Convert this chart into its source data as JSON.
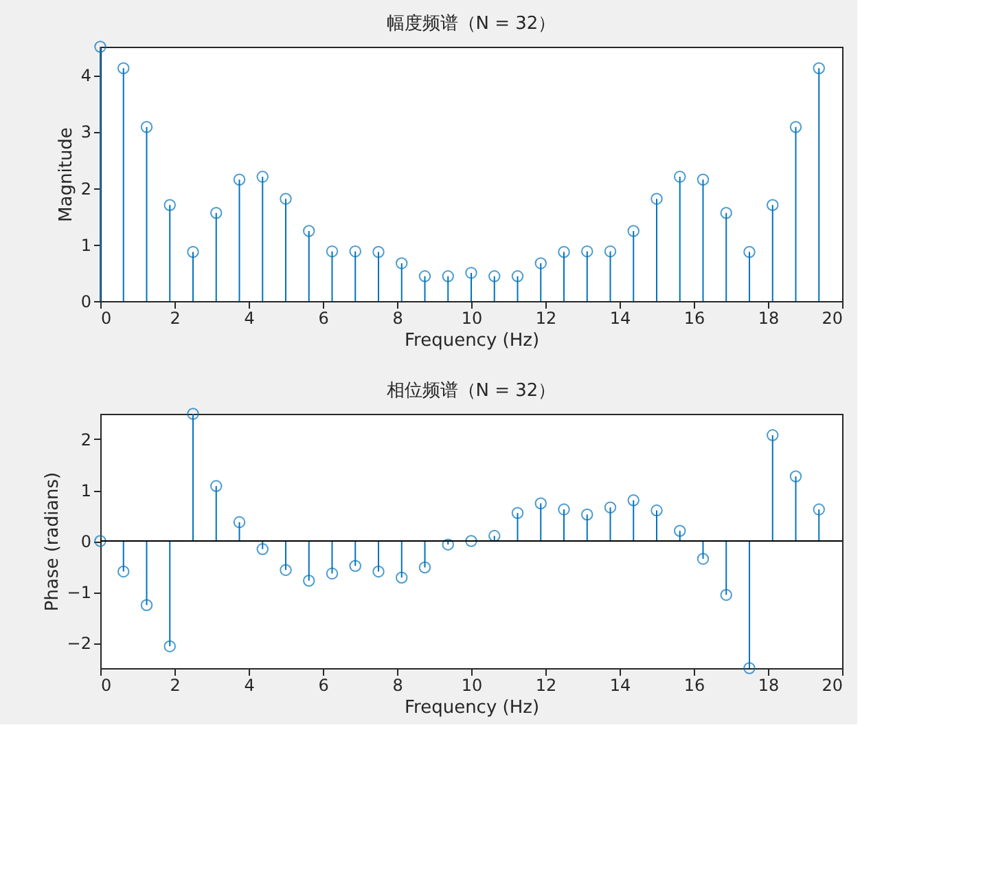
{
  "chart_data": [
    {
      "type": "lollipop",
      "title": "幅度频谱（N = 32）",
      "xlabel": "Frequency (Hz)",
      "ylabel": "Magnitude",
      "x": [
        0,
        0.625,
        1.25,
        1.875,
        2.5,
        3.125,
        3.75,
        4.375,
        5,
        5.625,
        6.25,
        6.875,
        7.5,
        8.125,
        8.75,
        9.375,
        10,
        10.625,
        11.25,
        11.875,
        12.5,
        13.125,
        13.75,
        14.375,
        15,
        15.625,
        16.25,
        16.875,
        17.5,
        18.125,
        18.75,
        19.375
      ],
      "series": [
        {
          "color": "#0072bd",
          "values": [
            4.5,
            4.12,
            3.08,
            1.7,
            0.87,
            1.56,
            2.15,
            2.2,
            1.81,
            1.24,
            0.88,
            0.88,
            0.87,
            0.67,
            0.44,
            0.44,
            0.5,
            0.44,
            0.44,
            0.67,
            0.87,
            0.88,
            0.88,
            1.24,
            1.81,
            2.2,
            2.15,
            1.56,
            0.87,
            1.7,
            3.08,
            4.12
          ]
        }
      ],
      "xlim": [
        0,
        20
      ],
      "xticks": [
        0,
        2,
        4,
        6,
        8,
        10,
        12,
        14,
        16,
        18,
        20
      ],
      "ylim": [
        0,
        4.5
      ],
      "yticks": [
        0,
        1,
        2,
        3,
        4
      ],
      "marker": "circle",
      "grid": false
    },
    {
      "type": "lollipop",
      "title": "相位频谱（N = 32）",
      "xlabel": "Frequency (Hz)",
      "ylabel": "Phase (radians)",
      "x": [
        0,
        0.625,
        1.25,
        1.875,
        2.5,
        3.125,
        3.75,
        4.375,
        5,
        5.625,
        6.25,
        6.875,
        7.5,
        8.125,
        8.75,
        9.375,
        10,
        10.625,
        11.25,
        11.875,
        12.5,
        13.125,
        13.75,
        14.375,
        15,
        15.625,
        16.25,
        16.875,
        17.5,
        18.125,
        18.75,
        19.375
      ],
      "series": [
        {
          "color": "#0072bd",
          "values": [
            0,
            -0.6,
            -1.26,
            -2.07,
            2.5,
            1.08,
            0.37,
            -0.16,
            -0.57,
            -0.78,
            -0.64,
            -0.49,
            -0.6,
            -0.72,
            -0.52,
            -0.07,
            0,
            0.1,
            0.55,
            0.74,
            0.62,
            0.52,
            0.66,
            0.8,
            0.6,
            0.2,
            -0.35,
            -1.06,
            -2.5,
            2.08,
            1.27,
            0.62
          ]
        }
      ],
      "xlim": [
        0,
        20
      ],
      "xticks": [
        0,
        2,
        4,
        6,
        8,
        10,
        12,
        14,
        16,
        18,
        20
      ],
      "ylim": [
        -2.5,
        2.5
      ],
      "yticks": [
        -2,
        -1,
        0,
        1,
        2
      ],
      "marker": "circle",
      "grid": false,
      "ref_lines": [
        {
          "axis": "y",
          "value": 0,
          "color": "#000000"
        }
      ]
    }
  ]
}
